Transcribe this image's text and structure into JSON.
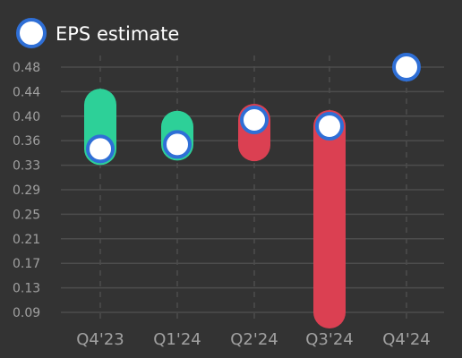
{
  "chart_data": {
    "type": "scatter",
    "legend": {
      "entries": [
        "EPS estimate"
      ],
      "placement": "top-left"
    },
    "categories": [
      "Q4'23",
      "Q1'24",
      "Q2'24",
      "Q3'24",
      "Q4'24"
    ],
    "yticks": [
      "0.48",
      "0.44",
      "0.40",
      "0.36",
      "0.33",
      "0.29",
      "0.25",
      "0.21",
      "0.17",
      "0.13",
      "0.09"
    ],
    "ylim": [
      0.07,
      0.51
    ],
    "series": [
      {
        "name": "EPS estimate",
        "values": [
          0.35,
          0.357,
          0.396,
          0.386,
          0.48
        ]
      }
    ],
    "ranges": [
      {
        "category": "Q4'23",
        "low": 0.35,
        "high": 0.42,
        "color": "#2dd098"
      },
      {
        "category": "Q1'24",
        "low": 0.357,
        "high": 0.385,
        "color": "#2dd098"
      },
      {
        "category": "Q2'24",
        "low": 0.356,
        "high": 0.396,
        "color": "#db4052"
      },
      {
        "category": "Q3'24",
        "low": 0.09,
        "high": 0.386,
        "color": "#db4052"
      }
    ],
    "grid": true,
    "colors": {
      "background": "#333333",
      "grid": "#4d4d4d",
      "marker_fill": "#ffffff",
      "marker_stroke": "#2f6fd6",
      "beat": "#2dd098",
      "miss": "#db4052"
    }
  }
}
